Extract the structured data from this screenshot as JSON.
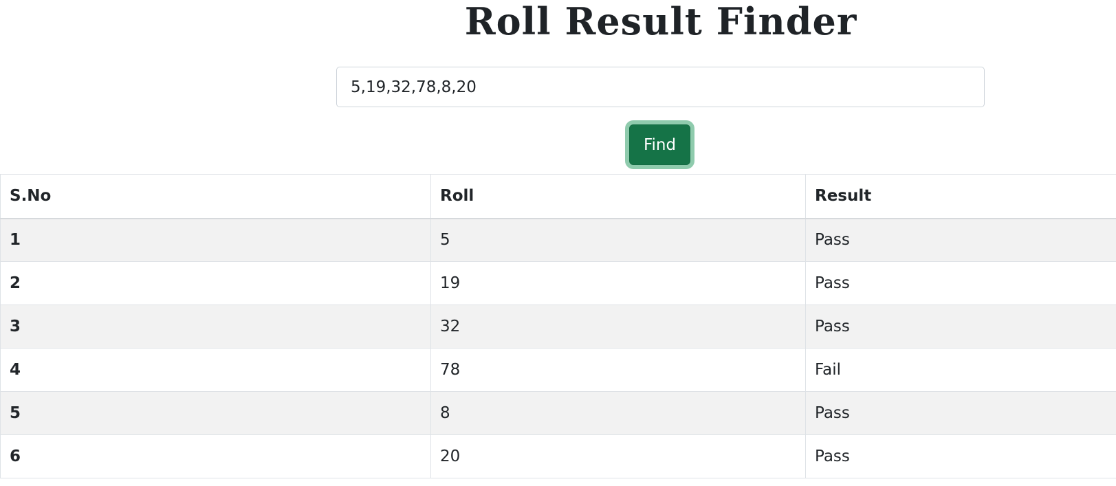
{
  "header": {
    "title": "Roll Result Finder"
  },
  "search": {
    "value": "5,19,32,78,8,20",
    "placeholder": ""
  },
  "find_button": {
    "label": "Find"
  },
  "table": {
    "columns": [
      "S.No",
      "Roll",
      "Result"
    ],
    "rows": [
      [
        "1",
        "5",
        "Pass"
      ],
      [
        "2",
        "19",
        "Pass"
      ],
      [
        "3",
        "32",
        "Pass"
      ],
      [
        "4",
        "78",
        "Fail"
      ],
      [
        "5",
        "8",
        "Pass"
      ],
      [
        "6",
        "20",
        "Pass"
      ]
    ]
  },
  "colors": {
    "button_bg": "#157347",
    "button_ring": "#8fcbad",
    "striped_row": "#f2f2f2",
    "text": "#212529"
  }
}
